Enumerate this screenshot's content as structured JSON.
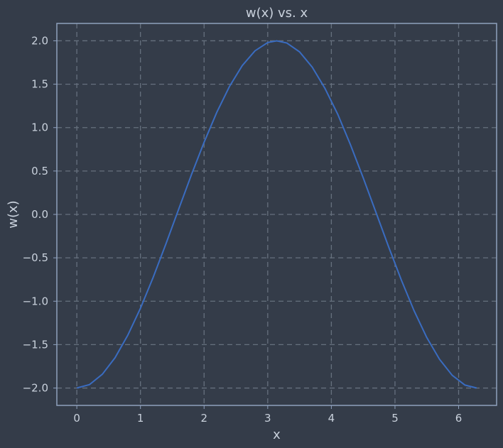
{
  "chart_data": {
    "type": "line",
    "title": "w(x) vs. x",
    "xlabel": "x",
    "ylabel": "w(x)",
    "xlim": [
      -0.314,
      6.597
    ],
    "ylim": [
      -2.2,
      2.2
    ],
    "x_ticks": [
      0,
      1,
      2,
      3,
      4,
      5,
      6
    ],
    "x_tick_labels": [
      "0",
      "1",
      "2",
      "3",
      "4",
      "5",
      "6"
    ],
    "y_ticks": [
      2.0,
      1.5,
      1.0,
      0.5,
      0.0,
      -0.5,
      -1.0,
      -1.5,
      -2.0
    ],
    "y_tick_labels": [
      "2.0",
      "1.5",
      "1.0",
      "0.5",
      "0.0",
      "−0.5",
      "−1.0",
      "−1.5",
      "−2.0"
    ],
    "grid": true,
    "series": [
      {
        "color": "#3a6cc0",
        "x": [
          0,
          0.2,
          0.4,
          0.6,
          0.8,
          1.0,
          1.2,
          1.4,
          1.6,
          1.8,
          2.0,
          2.2,
          2.4,
          2.6,
          2.8,
          3.0,
          3.1416,
          3.3,
          3.5,
          3.7,
          3.9,
          4.1,
          4.3,
          4.5,
          4.7,
          4.9,
          5.1,
          5.3,
          5.5,
          5.7,
          5.9,
          6.1,
          6.2832
        ],
        "y": [
          -2.0,
          -1.96,
          -1.842,
          -1.651,
          -1.393,
          -1.081,
          -0.725,
          -0.34,
          0.058,
          0.454,
          0.832,
          1.177,
          1.475,
          1.714,
          1.884,
          1.98,
          2.0,
          1.975,
          1.873,
          1.696,
          1.452,
          1.154,
          0.802,
          0.422,
          0.025,
          -0.373,
          -0.756,
          -1.109,
          -1.418,
          -1.669,
          -1.854,
          -1.966,
          -2.0
        ]
      }
    ]
  },
  "colors": {
    "background": "#343c49",
    "frame": "#8fa1be",
    "grid": "#66707e",
    "text": "#c9d1dc"
  }
}
